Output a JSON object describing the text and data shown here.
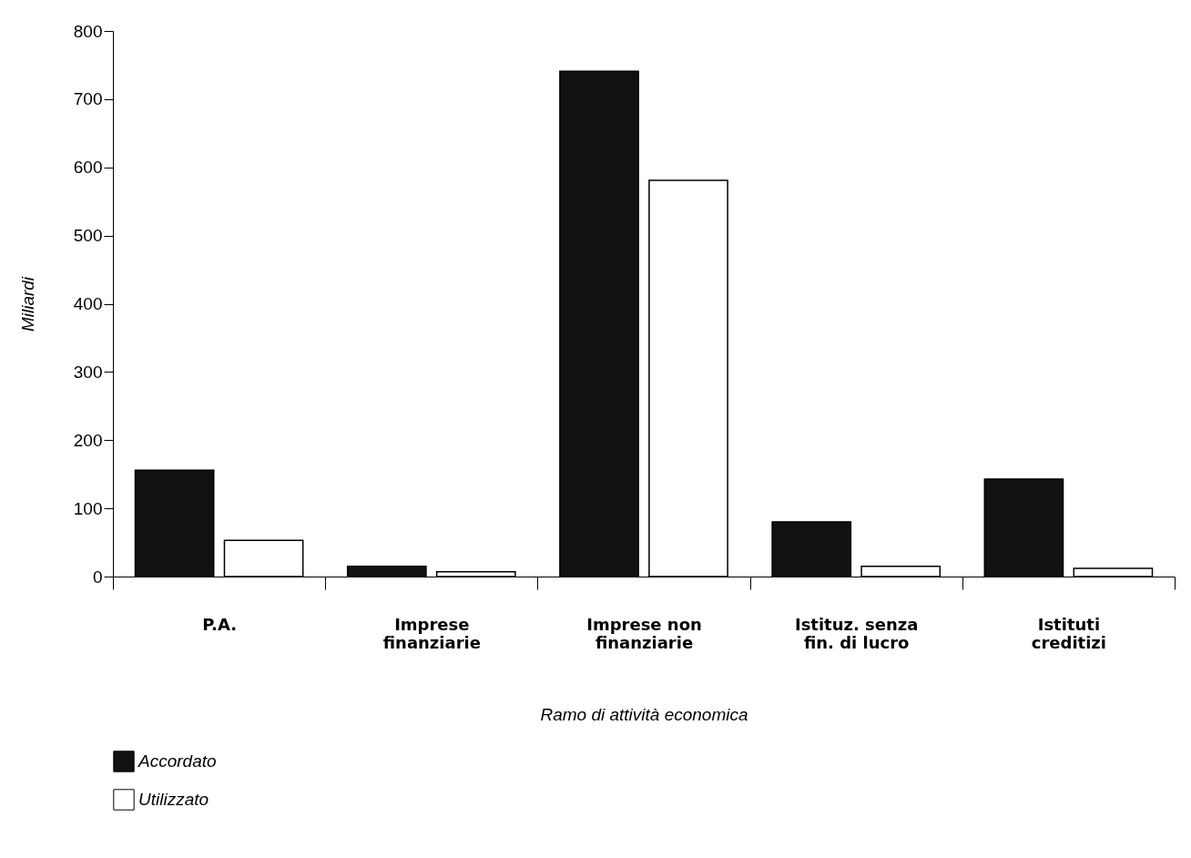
{
  "chart_data": {
    "type": "bar",
    "xlabel": "Ramo di attività economica",
    "ylabel": "Miliardi",
    "categories": [
      "P.A.",
      "Imprese finanziarie",
      "Imprese non finanziarie",
      "Istituz. senza fin. di lucro",
      "Istituti creditizi"
    ],
    "series": [
      {
        "name": "Accordato",
        "color": "#111111",
        "values": [
          156,
          15,
          741,
          80,
          143
        ]
      },
      {
        "name": "Utilizzato",
        "color": "#ffffff",
        "values": [
          53,
          7,
          581,
          15,
          12
        ]
      }
    ],
    "ylim": [
      0,
      800
    ],
    "yticks": [
      0,
      100,
      200,
      300,
      400,
      500,
      600,
      700,
      800
    ],
    "grid": false,
    "legend": "bottom"
  }
}
